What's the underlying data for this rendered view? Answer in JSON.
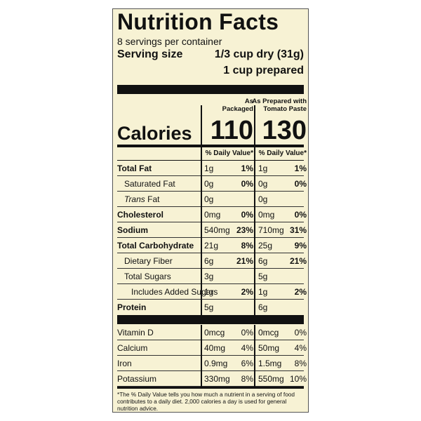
{
  "title": "Nutrition Facts",
  "servings": "8 servings per container",
  "serving_size": {
    "label": "Serving size",
    "amount": "1/3 cup dry (31g)",
    "amount_prepared": "1 cup prepared"
  },
  "columns": [
    "As\nPackaged",
    "As Prepared with\nTomato Paste"
  ],
  "calories": {
    "label": "Calories",
    "values": [
      "110",
      "130"
    ]
  },
  "dv_header": "% Daily Value*",
  "nutrients": [
    {
      "name": "Total Fat",
      "bold": true,
      "indent": 0,
      "values": [
        [
          "1g",
          "1%"
        ],
        [
          "1g",
          "1%"
        ]
      ]
    },
    {
      "name": "Saturated Fat",
      "bold": false,
      "indent": 1,
      "values": [
        [
          "0g",
          "0%"
        ],
        [
          "0g",
          "0%"
        ]
      ]
    },
    {
      "name_italic": "Trans",
      "name": "Fat",
      "bold": false,
      "indent": 1,
      "values": [
        [
          "0g",
          null
        ],
        [
          "0g",
          null
        ]
      ]
    },
    {
      "name": "Cholesterol",
      "bold": true,
      "indent": 0,
      "values": [
        [
          "0mg",
          "0%"
        ],
        [
          "0mg",
          "0%"
        ]
      ]
    },
    {
      "name": "Sodium",
      "bold": true,
      "indent": 0,
      "values": [
        [
          "540mg",
          "23%"
        ],
        [
          "710mg",
          "31%"
        ]
      ]
    },
    {
      "name": "Total Carbohydrate",
      "bold": true,
      "indent": 0,
      "values": [
        [
          "21g",
          "8%"
        ],
        [
          "25g",
          "9%"
        ]
      ]
    },
    {
      "name": "Dietary Fiber",
      "bold": false,
      "indent": 1,
      "values": [
        [
          "6g",
          "21%"
        ],
        [
          "6g",
          "21%"
        ]
      ]
    },
    {
      "name": "Total Sugars",
      "bold": false,
      "indent": 1,
      "values": [
        [
          "3g",
          null
        ],
        [
          "5g",
          null
        ]
      ]
    },
    {
      "name": "Includes Added Sugars",
      "bold": false,
      "indent": 2,
      "values": [
        [
          "1g",
          "2%"
        ],
        [
          "1g",
          "2%"
        ]
      ]
    },
    {
      "name": "Protein",
      "bold": true,
      "indent": 0,
      "values": [
        [
          "5g",
          null
        ],
        [
          "6g",
          null
        ]
      ]
    }
  ],
  "vitamins": [
    {
      "name": "Vitamin D",
      "values": [
        [
          "0mcg",
          "0%"
        ],
        [
          "0mcg",
          "0%"
        ]
      ]
    },
    {
      "name": "Calcium",
      "values": [
        [
          "40mg",
          "4%"
        ],
        [
          "50mg",
          "4%"
        ]
      ]
    },
    {
      "name": "Iron",
      "values": [
        [
          "0.9mg",
          "6%"
        ],
        [
          "1.5mg",
          "8%"
        ]
      ]
    },
    {
      "name": "Potassium",
      "values": [
        [
          "330mg",
          "8%"
        ],
        [
          "550mg",
          "10%"
        ]
      ]
    }
  ],
  "footnote": "*The % Daily Value tells you how much a nutrient in a serving of food contributes to a daily diet. 2,000 calories a day is used for general nutrition advice."
}
